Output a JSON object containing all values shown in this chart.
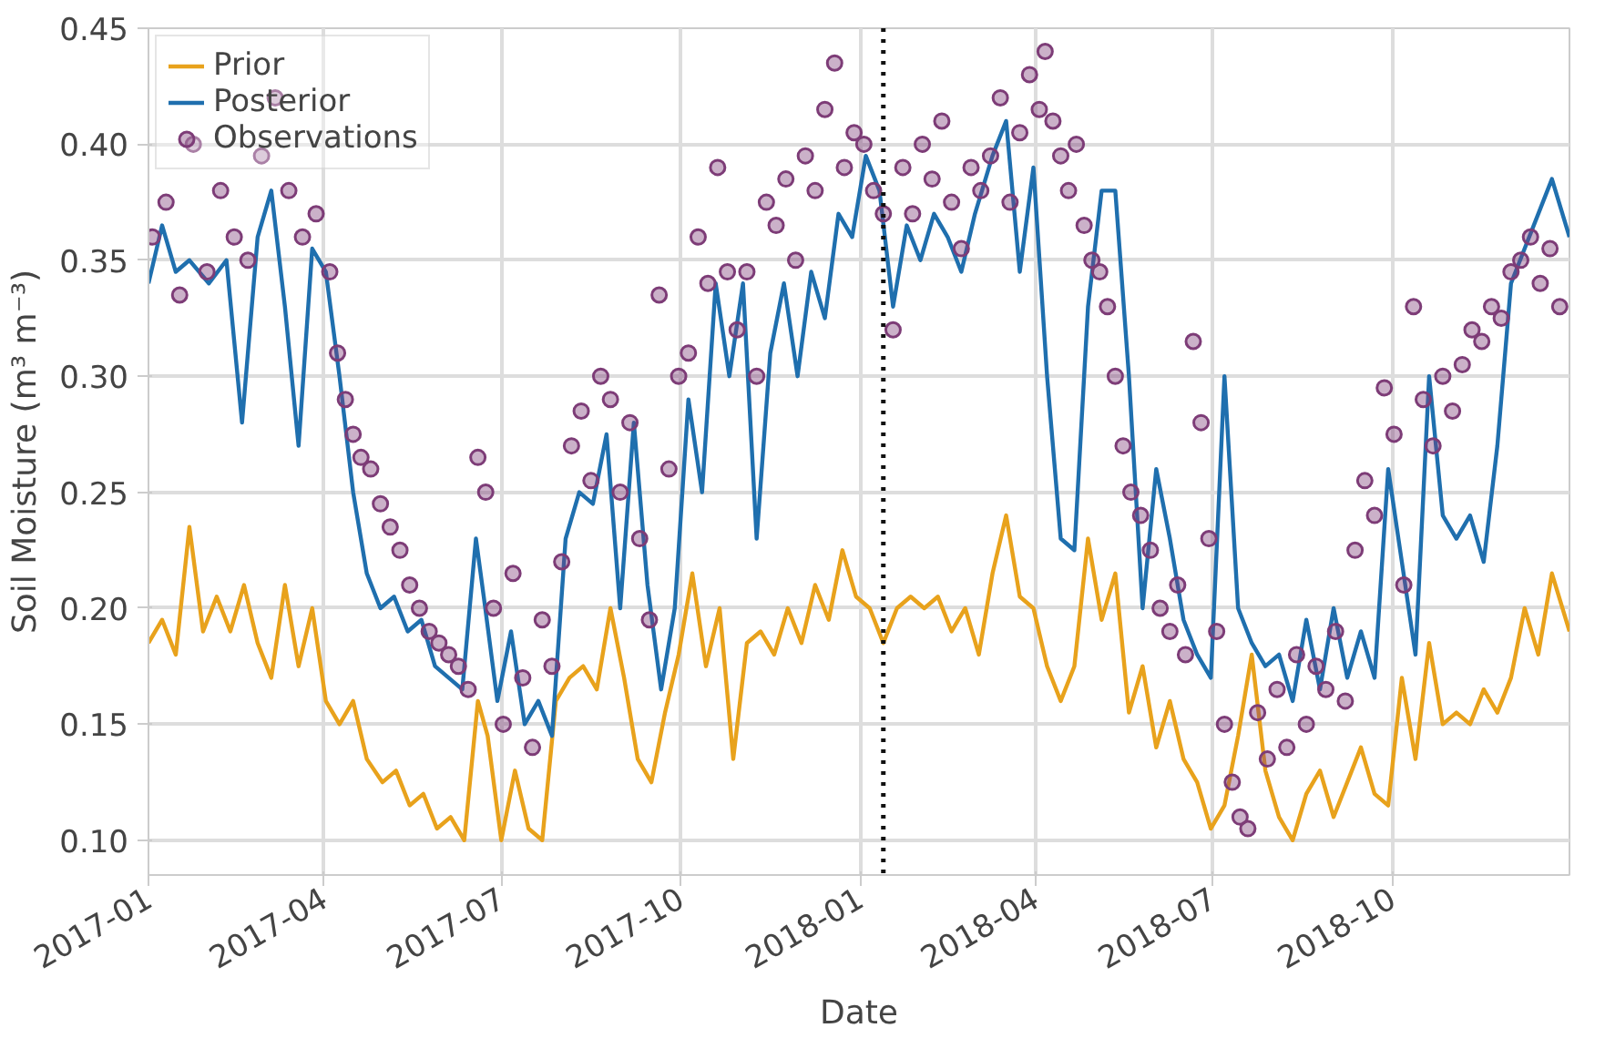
{
  "chart_data": {
    "type": "line",
    "xlabel": "Date",
    "ylabel": "Soil Moisture (m³ m⁻³)",
    "xlim": [
      "2017-01-01",
      "2018-12-31"
    ],
    "xticks": [
      "2017-01",
      "2017-04",
      "2017-07",
      "2017-10",
      "2018-01",
      "2018-04",
      "2018-07",
      "2018-10"
    ],
    "ylim": [
      0.085,
      0.45
    ],
    "yticks": [
      {
        "value": 0.1,
        "label": "0.10"
      },
      {
        "value": 0.15,
        "label": "0.15"
      },
      {
        "value": 0.2,
        "label": "0.20"
      },
      {
        "value": 0.25,
        "label": "0.25"
      },
      {
        "value": 0.3,
        "label": "0.30"
      },
      {
        "value": 0.35,
        "label": "0.35"
      },
      {
        "value": 0.4,
        "label": "0.40"
      },
      {
        "value": 0.45,
        "label": "0.45"
      }
    ],
    "grid": true,
    "legend": "top left",
    "ref_lines": [
      {
        "axis": "x",
        "value": "2018-01-13",
        "color": "#111111",
        "line_style": "dotted"
      }
    ],
    "series": [
      {
        "name": "Prior",
        "color": "#e8a21c",
        "line_style": "solid",
        "x": [
          "2017-01-01",
          "2017-01-08",
          "2017-01-15",
          "2017-01-22",
          "2017-01-29",
          "2017-02-05",
          "2017-02-12",
          "2017-02-19",
          "2017-02-26",
          "2017-03-05",
          "2017-03-12",
          "2017-03-19",
          "2017-03-26",
          "2017-04-02",
          "2017-04-09",
          "2017-04-16",
          "2017-04-23",
          "2017-05-01",
          "2017-05-08",
          "2017-05-15",
          "2017-05-22",
          "2017-05-29",
          "2017-06-05",
          "2017-06-12",
          "2017-06-19",
          "2017-06-24",
          "2017-07-01",
          "2017-07-08",
          "2017-07-15",
          "2017-07-22",
          "2017-07-29",
          "2017-08-05",
          "2017-08-12",
          "2017-08-19",
          "2017-08-26",
          "2017-09-02",
          "2017-09-09",
          "2017-09-16",
          "2017-09-23",
          "2017-09-30",
          "2017-10-07",
          "2017-10-14",
          "2017-10-21",
          "2017-10-28",
          "2017-11-04",
          "2017-11-11",
          "2017-11-18",
          "2017-11-25",
          "2017-12-02",
          "2017-12-09",
          "2017-12-16",
          "2017-12-23",
          "2017-12-30",
          "2018-01-06",
          "2018-01-13",
          "2018-01-20",
          "2018-01-27",
          "2018-02-03",
          "2018-02-10",
          "2018-02-17",
          "2018-02-24",
          "2018-03-03",
          "2018-03-10",
          "2018-03-17",
          "2018-03-24",
          "2018-03-31",
          "2018-04-07",
          "2018-04-14",
          "2018-04-21",
          "2018-04-28",
          "2018-05-05",
          "2018-05-12",
          "2018-05-19",
          "2018-05-26",
          "2018-06-02",
          "2018-06-09",
          "2018-06-16",
          "2018-06-23",
          "2018-06-30",
          "2018-07-07",
          "2018-07-14",
          "2018-07-21",
          "2018-07-28",
          "2018-08-04",
          "2018-08-11",
          "2018-08-18",
          "2018-08-25",
          "2018-09-01",
          "2018-09-08",
          "2018-09-15",
          "2018-09-22",
          "2018-09-29",
          "2018-10-06",
          "2018-10-13",
          "2018-10-20",
          "2018-10-27",
          "2018-11-03",
          "2018-11-10",
          "2018-11-17",
          "2018-11-24",
          "2018-12-01",
          "2018-12-08",
          "2018-12-15",
          "2018-12-22",
          "2018-12-31"
        ],
        "values": [
          0.185,
          0.195,
          0.18,
          0.235,
          0.19,
          0.205,
          0.19,
          0.21,
          0.185,
          0.17,
          0.21,
          0.175,
          0.2,
          0.16,
          0.15,
          0.16,
          0.135,
          0.125,
          0.13,
          0.115,
          0.12,
          0.105,
          0.11,
          0.1,
          0.16,
          0.145,
          0.1,
          0.13,
          0.105,
          0.1,
          0.16,
          0.17,
          0.175,
          0.165,
          0.2,
          0.17,
          0.135,
          0.125,
          0.155,
          0.18,
          0.215,
          0.175,
          0.2,
          0.135,
          0.185,
          0.19,
          0.18,
          0.2,
          0.185,
          0.21,
          0.195,
          0.225,
          0.205,
          0.2,
          0.185,
          0.2,
          0.205,
          0.2,
          0.205,
          0.19,
          0.2,
          0.18,
          0.215,
          0.24,
          0.205,
          0.2,
          0.175,
          0.16,
          0.175,
          0.23,
          0.195,
          0.215,
          0.155,
          0.175,
          0.14,
          0.16,
          0.135,
          0.125,
          0.105,
          0.115,
          0.145,
          0.18,
          0.13,
          0.11,
          0.1,
          0.12,
          0.13,
          0.11,
          0.125,
          0.14,
          0.12,
          0.115,
          0.17,
          0.135,
          0.185,
          0.15,
          0.155,
          0.15,
          0.165,
          0.155,
          0.17,
          0.2,
          0.18,
          0.215,
          0.19
        ]
      },
      {
        "name": "Posterior",
        "color": "#1f6fae",
        "line_style": "solid",
        "x": [
          "2017-01-01",
          "2017-01-08",
          "2017-01-15",
          "2017-01-22",
          "2017-02-01",
          "2017-02-10",
          "2017-02-18",
          "2017-02-26",
          "2017-03-05",
          "2017-03-12",
          "2017-03-19",
          "2017-03-26",
          "2017-04-02",
          "2017-04-09",
          "2017-04-16",
          "2017-04-23",
          "2017-04-30",
          "2017-05-07",
          "2017-05-14",
          "2017-05-21",
          "2017-05-28",
          "2017-06-04",
          "2017-06-11",
          "2017-06-18",
          "2017-06-22",
          "2017-06-29",
          "2017-07-06",
          "2017-07-13",
          "2017-07-20",
          "2017-07-27",
          "2017-08-03",
          "2017-08-10",
          "2017-08-17",
          "2017-08-24",
          "2017-08-31",
          "2017-09-07",
          "2017-09-14",
          "2017-09-21",
          "2017-09-28",
          "2017-10-05",
          "2017-10-12",
          "2017-10-19",
          "2017-10-26",
          "2017-11-02",
          "2017-11-09",
          "2017-11-16",
          "2017-11-23",
          "2017-11-30",
          "2017-12-07",
          "2017-12-14",
          "2017-12-21",
          "2017-12-28",
          "2018-01-04",
          "2018-01-11",
          "2018-01-18",
          "2018-01-25",
          "2018-02-01",
          "2018-02-08",
          "2018-02-15",
          "2018-02-22",
          "2018-03-01",
          "2018-03-10",
          "2018-03-17",
          "2018-03-24",
          "2018-03-31",
          "2018-04-07",
          "2018-04-14",
          "2018-04-21",
          "2018-04-28",
          "2018-05-05",
          "2018-05-12",
          "2018-05-19",
          "2018-05-26",
          "2018-06-02",
          "2018-06-09",
          "2018-06-16",
          "2018-06-23",
          "2018-06-30",
          "2018-07-07",
          "2018-07-14",
          "2018-07-21",
          "2018-07-28",
          "2018-08-04",
          "2018-08-11",
          "2018-08-18",
          "2018-08-25",
          "2018-09-01",
          "2018-09-08",
          "2018-09-15",
          "2018-09-22",
          "2018-09-29",
          "2018-10-06",
          "2018-10-13",
          "2018-10-20",
          "2018-10-27",
          "2018-11-03",
          "2018-11-10",
          "2018-11-17",
          "2018-11-24",
          "2018-12-01",
          "2018-12-08",
          "2018-12-15",
          "2018-12-22",
          "2018-12-31"
        ],
        "values": [
          0.34,
          0.365,
          0.345,
          0.35,
          0.34,
          0.35,
          0.28,
          0.36,
          0.38,
          0.33,
          0.27,
          0.355,
          0.345,
          0.3,
          0.25,
          0.215,
          0.2,
          0.205,
          0.19,
          0.195,
          0.175,
          0.17,
          0.165,
          0.23,
          0.205,
          0.16,
          0.19,
          0.15,
          0.16,
          0.145,
          0.23,
          0.25,
          0.245,
          0.275,
          0.2,
          0.28,
          0.21,
          0.165,
          0.2,
          0.29,
          0.25,
          0.34,
          0.3,
          0.34,
          0.23,
          0.31,
          0.34,
          0.3,
          0.345,
          0.325,
          0.37,
          0.36,
          0.395,
          0.38,
          0.33,
          0.365,
          0.35,
          0.37,
          0.36,
          0.345,
          0.37,
          0.395,
          0.41,
          0.345,
          0.39,
          0.3,
          0.23,
          0.225,
          0.33,
          0.38,
          0.38,
          0.3,
          0.2,
          0.26,
          0.23,
          0.195,
          0.18,
          0.17,
          0.3,
          0.2,
          0.185,
          0.175,
          0.18,
          0.16,
          0.195,
          0.165,
          0.2,
          0.17,
          0.19,
          0.17,
          0.26,
          0.22,
          0.18,
          0.3,
          0.24,
          0.23,
          0.24,
          0.22,
          0.27,
          0.34,
          0.355,
          0.37,
          0.385,
          0.36
        ]
      },
      {
        "name": "Observations",
        "type": "scatter",
        "color": "#7d3c77",
        "marker": "circle",
        "x": [
          "2017-01-03",
          "2017-01-10",
          "2017-01-17",
          "2017-01-24",
          "2017-01-31",
          "2017-02-07",
          "2017-02-14",
          "2017-02-21",
          "2017-02-28",
          "2017-03-07",
          "2017-03-14",
          "2017-03-21",
          "2017-03-28",
          "2017-04-04",
          "2017-04-08",
          "2017-04-12",
          "2017-04-16",
          "2017-04-20",
          "2017-04-25",
          "2017-04-30",
          "2017-05-05",
          "2017-05-10",
          "2017-05-15",
          "2017-05-20",
          "2017-05-25",
          "2017-05-30",
          "2017-06-04",
          "2017-06-09",
          "2017-06-14",
          "2017-06-19",
          "2017-06-23",
          "2017-06-27",
          "2017-07-02",
          "2017-07-07",
          "2017-07-12",
          "2017-07-17",
          "2017-07-22",
          "2017-07-27",
          "2017-08-01",
          "2017-08-06",
          "2017-08-11",
          "2017-08-16",
          "2017-08-21",
          "2017-08-26",
          "2017-08-31",
          "2017-09-05",
          "2017-09-10",
          "2017-09-15",
          "2017-09-20",
          "2017-09-25",
          "2017-09-30",
          "2017-10-05",
          "2017-10-10",
          "2017-10-15",
          "2017-10-20",
          "2017-10-25",
          "2017-10-30",
          "2017-11-04",
          "2017-11-09",
          "2017-11-14",
          "2017-11-19",
          "2017-11-24",
          "2017-11-29",
          "2017-12-04",
          "2017-12-09",
          "2017-12-14",
          "2017-12-19",
          "2017-12-24",
          "2017-12-29",
          "2018-01-03",
          "2018-01-08",
          "2018-01-13",
          "2018-01-18",
          "2018-01-23",
          "2018-01-28",
          "2018-02-02",
          "2018-02-07",
          "2018-02-12",
          "2018-02-17",
          "2018-02-22",
          "2018-02-27",
          "2018-03-04",
          "2018-03-09",
          "2018-03-14",
          "2018-03-19",
          "2018-03-24",
          "2018-03-29",
          "2018-04-03",
          "2018-04-06",
          "2018-04-10",
          "2018-04-14",
          "2018-04-18",
          "2018-04-22",
          "2018-04-26",
          "2018-04-30",
          "2018-05-04",
          "2018-05-08",
          "2018-05-12",
          "2018-05-16",
          "2018-05-20",
          "2018-05-25",
          "2018-05-30",
          "2018-06-04",
          "2018-06-09",
          "2018-06-13",
          "2018-06-17",
          "2018-06-21",
          "2018-06-25",
          "2018-06-29",
          "2018-07-03",
          "2018-07-07",
          "2018-07-11",
          "2018-07-15",
          "2018-07-19",
          "2018-07-24",
          "2018-07-29",
          "2018-08-03",
          "2018-08-08",
          "2018-08-13",
          "2018-08-18",
          "2018-08-23",
          "2018-08-28",
          "2018-09-02",
          "2018-09-07",
          "2018-09-12",
          "2018-09-17",
          "2018-09-22",
          "2018-09-27",
          "2018-10-02",
          "2018-10-07",
          "2018-10-12",
          "2018-10-17",
          "2018-10-22",
          "2018-10-27",
          "2018-11-01",
          "2018-11-06",
          "2018-11-11",
          "2018-11-16",
          "2018-11-21",
          "2018-11-26",
          "2018-12-01",
          "2018-12-06",
          "2018-12-11",
          "2018-12-16",
          "2018-12-21",
          "2018-12-26"
        ],
        "values": [
          0.36,
          0.375,
          0.335,
          0.4,
          0.345,
          0.38,
          0.36,
          0.35,
          0.395,
          0.42,
          0.38,
          0.36,
          0.37,
          0.345,
          0.31,
          0.29,
          0.275,
          0.265,
          0.26,
          0.245,
          0.235,
          0.225,
          0.21,
          0.2,
          0.19,
          0.185,
          0.18,
          0.175,
          0.165,
          0.265,
          0.25,
          0.2,
          0.15,
          0.215,
          0.17,
          0.14,
          0.195,
          0.175,
          0.22,
          0.27,
          0.285,
          0.255,
          0.3,
          0.29,
          0.25,
          0.28,
          0.23,
          0.195,
          0.335,
          0.26,
          0.3,
          0.31,
          0.36,
          0.34,
          0.39,
          0.345,
          0.32,
          0.345,
          0.3,
          0.375,
          0.365,
          0.385,
          0.35,
          0.395,
          0.38,
          0.415,
          0.435,
          0.39,
          0.405,
          0.4,
          0.38,
          0.37,
          0.32,
          0.39,
          0.37,
          0.4,
          0.385,
          0.41,
          0.375,
          0.355,
          0.39,
          0.38,
          0.395,
          0.42,
          0.375,
          0.405,
          0.43,
          0.415,
          0.44,
          0.41,
          0.395,
          0.38,
          0.4,
          0.365,
          0.35,
          0.345,
          0.33,
          0.3,
          0.27,
          0.25,
          0.24,
          0.225,
          0.2,
          0.19,
          0.21,
          0.18,
          0.315,
          0.28,
          0.23,
          0.19,
          0.15,
          0.125,
          0.11,
          0.105,
          0.155,
          0.135,
          0.165,
          0.14,
          0.18,
          0.15,
          0.175,
          0.165,
          0.19,
          0.16,
          0.225,
          0.255,
          0.24,
          0.295,
          0.275,
          0.21,
          0.33,
          0.29,
          0.27,
          0.3,
          0.285,
          0.305,
          0.32,
          0.315,
          0.33,
          0.325,
          0.345,
          0.35,
          0.36,
          0.34,
          0.355,
          0.33
        ]
      }
    ]
  }
}
